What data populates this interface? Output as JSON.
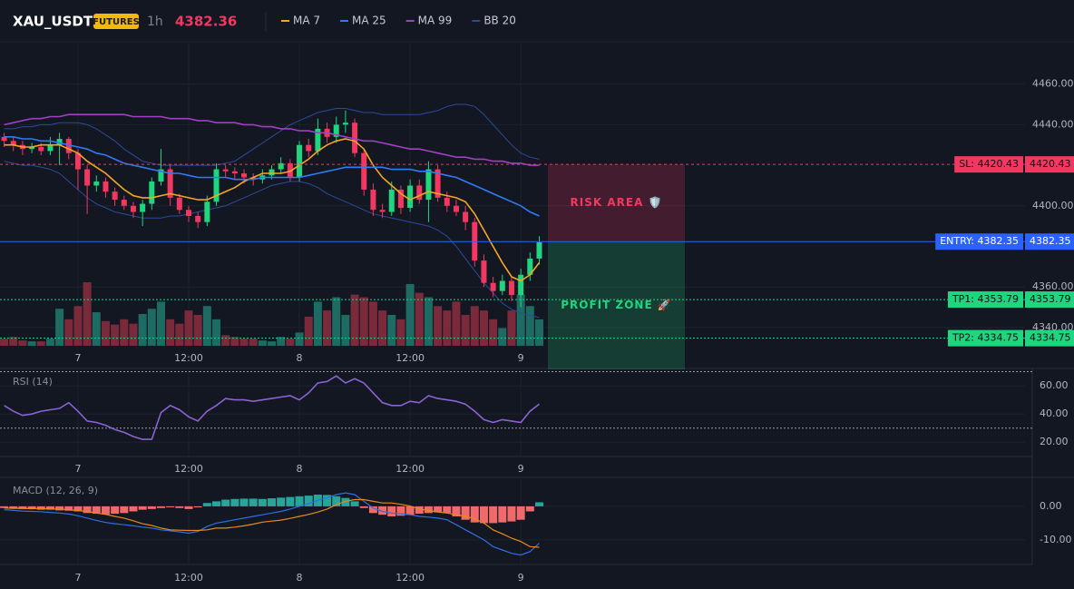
{
  "header": {
    "symbol": "XAU_USDT",
    "badge": "FUTURES",
    "interval": "1h",
    "price": "4382.36",
    "legend": [
      {
        "name": "MA 7",
        "color": "#f5a623"
      },
      {
        "name": "MA 25",
        "color": "#2f7bf5"
      },
      {
        "name": "MA 99",
        "color": "#a23fc4"
      },
      {
        "name": "BB 20",
        "color": "#2d4a9a"
      }
    ]
  },
  "chart_data": [
    {
      "type": "candlestick",
      "grid": true,
      "xlim": [
        -0.45,
        110.65
      ],
      "xticks": [
        {
          "value": 8,
          "label": "7"
        },
        {
          "value": 20,
          "label": "12:00"
        },
        {
          "value": 32,
          "label": "8"
        },
        {
          "value": 44,
          "label": "12:00"
        },
        {
          "value": 56,
          "label": "9"
        }
      ],
      "ylim": [
        4331,
        4480
      ],
      "yticks": [
        {
          "value": 4340,
          "label": "4340.00"
        },
        {
          "value": 4360,
          "label": "4360.00"
        },
        {
          "value": 4400,
          "label": "4400.00"
        },
        {
          "value": 4440,
          "label": "4440.00"
        },
        {
          "value": 4460,
          "label": "4460.00"
        }
      ],
      "up_color": "#1fd67f",
      "down_color": "#f23860",
      "volume_up_color": "#1d6b63",
      "volume_down_color": "#7a2a3a",
      "open": [
        4434,
        4432,
        4430,
        4428,
        4429,
        4427,
        4430,
        4433,
        4426,
        4418,
        4410,
        4412,
        4407,
        4403,
        4400,
        4397,
        4401,
        4412,
        4418,
        4404,
        4398,
        4395,
        4392,
        4402,
        4418,
        4417,
        4416,
        4414,
        4413,
        4415,
        4418,
        4421,
        4414,
        4430,
        4427,
        4438,
        4434,
        4440,
        4441,
        4426,
        4408,
        4398,
        4397,
        4408,
        4399,
        4410,
        4403,
        4418,
        4404,
        4400,
        4397,
        4392,
        4373,
        4362,
        4358,
        4363,
        4356,
        4366,
        4374
      ],
      "high": [
        4436,
        4434,
        4432,
        4431,
        4431,
        4434,
        4436,
        4434,
        4428,
        4420,
        4415,
        4414,
        4409,
        4405,
        4402,
        4403,
        4414,
        4428,
        4420,
        4406,
        4400,
        4397,
        4405,
        4421,
        4420,
        4419,
        4418,
        4416,
        4418,
        4420,
        4424,
        4423,
        4432,
        4433,
        4443,
        4441,
        4444,
        4447,
        4443,
        4428,
        4411,
        4401,
        4412,
        4410,
        4413,
        4413,
        4422,
        4420,
        4407,
        4403,
        4400,
        4394,
        4376,
        4365,
        4366,
        4365,
        4369,
        4377,
        4385
      ],
      "low": [
        4429,
        4427,
        4425,
        4426,
        4425,
        4425,
        4420,
        4423,
        4408,
        4396,
        4407,
        4404,
        4400,
        4398,
        4394,
        4390,
        4398,
        4410,
        4400,
        4396,
        4392,
        4389,
        4390,
        4400,
        4414,
        4413,
        4411,
        4410,
        4411,
        4413,
        4416,
        4412,
        4412,
        4424,
        4425,
        4431,
        4431,
        4436,
        4424,
        4405,
        4395,
        4394,
        4395,
        4396,
        4397,
        4401,
        4392,
        4402,
        4397,
        4395,
        4388,
        4370,
        4360,
        4355,
        4356,
        4353,
        4350,
        4363,
        4371
      ],
      "close": [
        4432,
        4430,
        4428,
        4429,
        4427,
        4430,
        4433,
        4426,
        4418,
        4410,
        4412,
        4407,
        4403,
        4400,
        4397,
        4401,
        4412,
        4418,
        4404,
        4398,
        4395,
        4392,
        4402,
        4418,
        4417,
        4416,
        4414,
        4413,
        4415,
        4418,
        4421,
        4414,
        4430,
        4427,
        4438,
        4434,
        4440,
        4441,
        4426,
        4408,
        4398,
        4397,
        4408,
        4399,
        4410,
        4403,
        4418,
        4404,
        4400,
        4397,
        4392,
        4373,
        4362,
        4358,
        4363,
        4356,
        4366,
        4374,
        4382
      ],
      "volume": [
        8,
        10,
        6,
        5,
        5,
        8,
        42,
        30,
        45,
        72,
        38,
        28,
        24,
        30,
        25,
        36,
        42,
        50,
        30,
        25,
        40,
        35,
        45,
        30,
        12,
        10,
        8,
        8,
        6,
        5,
        10,
        8,
        15,
        33,
        50,
        40,
        55,
        35,
        58,
        55,
        50,
        40,
        35,
        30,
        70,
        60,
        55,
        45,
        40,
        50,
        35,
        45,
        40,
        30,
        20,
        40,
        58,
        45,
        30
      ],
      "series": [
        {
          "name": "MA 7",
          "color": "#f5a623",
          "values": [
            4430,
            4430,
            4429,
            4429,
            4430,
            4430,
            4430,
            4428,
            4426,
            4422,
            4419,
            4416,
            4412,
            4408,
            4405,
            4404,
            4404,
            4405,
            4406,
            4405,
            4404,
            4403,
            4403,
            4405,
            4407,
            4409,
            4412,
            4414,
            4416,
            4416,
            4416,
            4417,
            4420,
            4423,
            4427,
            4430,
            4432,
            4433,
            4432,
            4428,
            4420,
            4414,
            4410,
            4406,
            4403,
            4405,
            4407,
            4406,
            4405,
            4404,
            4402,
            4396,
            4388,
            4380,
            4372,
            4365,
            4363,
            4366,
            4372
          ]
        },
        {
          "name": "MA 25",
          "color": "#2f7bf5",
          "values": [
            4434,
            4434,
            4433,
            4433,
            4432,
            4432,
            4431,
            4430,
            4429,
            4428,
            4426,
            4425,
            4423,
            4421,
            4420,
            4419,
            4418,
            4417,
            4416,
            4416,
            4415,
            4414,
            4414,
            4414,
            4414,
            4413,
            4413,
            4413,
            4414,
            4414,
            4414,
            4414,
            4414,
            4415,
            4416,
            4417,
            4418,
            4419,
            4419,
            4419,
            4419,
            4419,
            4418,
            4418,
            4418,
            4417,
            4417,
            4416,
            4415,
            4414,
            4412,
            4410,
            4408,
            4406,
            4404,
            4402,
            4400,
            4397,
            4395
          ]
        },
        {
          "name": "MA 99",
          "color": "#a23fc4",
          "values": [
            4440,
            4441,
            4442,
            4443,
            4443,
            4444,
            4444,
            4445,
            4445,
            4445,
            4445,
            4445,
            4445,
            4445,
            4444,
            4444,
            4444,
            4444,
            4443,
            4443,
            4443,
            4442,
            4442,
            4441,
            4441,
            4441,
            4440,
            4440,
            4439,
            4439,
            4438,
            4438,
            4437,
            4437,
            4436,
            4436,
            4435,
            4434,
            4433,
            4432,
            4432,
            4431,
            4430,
            4429,
            4428,
            4428,
            4427,
            4426,
            4425,
            4424,
            4424,
            4423,
            4423,
            4422,
            4422,
            4421,
            4421,
            4420,
            4420
          ]
        },
        {
          "name": "BB 20",
          "color": "#2d4a9a",
          "upper": [
            4438,
            4438,
            4439,
            4439,
            4440,
            4440,
            4441,
            4441,
            4441,
            4440,
            4438,
            4435,
            4432,
            4428,
            4425,
            4422,
            4421,
            4420,
            4420,
            4420,
            4420,
            4420,
            4420,
            4420,
            4421,
            4422,
            4425,
            4428,
            4431,
            4434,
            4437,
            4440,
            4442,
            4444,
            4446,
            4447,
            4448,
            4448,
            4447,
            4446,
            4446,
            4445,
            4445,
            4445,
            4445,
            4445,
            4446,
            4447,
            4449,
            4450,
            4450,
            4449,
            4445,
            4440,
            4435,
            4430,
            4426,
            4424,
            4423
          ],
          "lower": [
            4422,
            4421,
            4420,
            4420,
            4419,
            4418,
            4416,
            4412,
            4408,
            4404,
            4401,
            4399,
            4397,
            4396,
            4395,
            4394,
            4394,
            4394,
            4395,
            4395,
            4396,
            4397,
            4398,
            4399,
            4400,
            4402,
            4404,
            4406,
            4408,
            4410,
            4411,
            4412,
            4412,
            4411,
            4409,
            4406,
            4404,
            4402,
            4400,
            4398,
            4396,
            4395,
            4394,
            4393,
            4392,
            4391,
            4390,
            4388,
            4385,
            4380,
            4374,
            4368,
            4362,
            4357,
            4352,
            4349,
            4347,
            4346,
            4345
          ]
        }
      ],
      "levels": [
        {
          "label": "SL: 4420.43",
          "value": 4420.43,
          "color": "#f23860",
          "style": "dashed"
        },
        {
          "label": "ENTRY: 4382.35",
          "value": 4382.35,
          "color": "#2962ff",
          "style": "solid"
        },
        {
          "label": "TP1: 4353.79",
          "value": 4353.79,
          "color": "#1fd67f",
          "style": "dotted"
        },
        {
          "label": "TP2: 4334.75",
          "value": 4334.75,
          "color": "#1fd67f",
          "style": "dotted"
        }
      ],
      "zones": [
        {
          "label": "RISK AREA 🛡️",
          "color": "#f23860"
        },
        {
          "label": "PROFIT ZONE 🚀",
          "color": "#1fd67f"
        }
      ]
    },
    {
      "type": "line",
      "title": "RSI (14)",
      "grid": true,
      "color": "#8a63d2",
      "xlim": [
        -0.45,
        110.65
      ],
      "xticks": [
        {
          "value": 8,
          "label": "7"
        },
        {
          "value": 20,
          "label": "12:00"
        },
        {
          "value": 32,
          "label": "8"
        },
        {
          "value": 44,
          "label": "12:00"
        },
        {
          "value": 56,
          "label": "9"
        }
      ],
      "ylim": [
        10.5,
        71
      ],
      "yticks": [
        {
          "value": 20,
          "label": "20.00"
        },
        {
          "value": 40,
          "label": "40.00"
        },
        {
          "value": 60,
          "label": "60.00"
        }
      ],
      "levels": [
        70,
        30
      ],
      "values": [
        46,
        42,
        39,
        40,
        42,
        43,
        44,
        48,
        42,
        35,
        34,
        32,
        29,
        27,
        24,
        22,
        22,
        41,
        46,
        43,
        38,
        35,
        42,
        46,
        51,
        50,
        50,
        49,
        50,
        51,
        52,
        53,
        50,
        55,
        62,
        63,
        67,
        62,
        65,
        62,
        55,
        48,
        46,
        46,
        49,
        48,
        53,
        51,
        50,
        49,
        47,
        42,
        36,
        34,
        36,
        35,
        34,
        42,
        47
      ]
    },
    {
      "type": "macd",
      "title": "MACD (12, 26, 9)",
      "grid": true,
      "xlim": [
        -0.45,
        110.65
      ],
      "xticks": [
        {
          "value": 8,
          "label": "7"
        },
        {
          "value": 20,
          "label": "12:00"
        },
        {
          "value": 32,
          "label": "8"
        },
        {
          "value": 44,
          "label": "12:00"
        },
        {
          "value": 56,
          "label": "9"
        }
      ],
      "ylim": [
        -16.8,
        8.1
      ],
      "yticks": [
        {
          "value": -10,
          "label": "-10.00"
        },
        {
          "value": 0,
          "label": "0.00"
        }
      ],
      "up_color": "#26a69a",
      "down_color": "#f06a6a",
      "histogram": [
        -0.5,
        -0.6,
        -0.8,
        -0.8,
        -1,
        -1,
        -1.2,
        -1.3,
        -1.5,
        -2,
        -2.2,
        -2.4,
        -2.2,
        -2,
        -1.5,
        -1,
        -0.8,
        -0.5,
        -0.3,
        -0.5,
        -0.8,
        -0.3,
        1,
        1.5,
        2,
        2.2,
        2.3,
        2.3,
        2.2,
        2.4,
        2.6,
        2.8,
        3,
        3.2,
        3.5,
        3.4,
        3,
        2.5,
        1.5,
        -0.5,
        -2,
        -2.5,
        -3,
        -2.8,
        -2.6,
        -2.2,
        -2,
        -1.8,
        -2,
        -3,
        -4,
        -4.8,
        -5,
        -5,
        -4.8,
        -4.5,
        -4,
        -1.5,
        1.2
      ],
      "series": [
        {
          "color": "#2f6fe0",
          "values": [
            -1,
            -1.2,
            -1.4,
            -1.5,
            -1.6,
            -1.8,
            -2,
            -2.3,
            -2.8,
            -3.5,
            -4.2,
            -4.8,
            -5.2,
            -5.5,
            -5.8,
            -6.2,
            -6.5,
            -7,
            -7.3,
            -7.6,
            -8,
            -7.5,
            -6,
            -5,
            -4.5,
            -4,
            -3.5,
            -3,
            -2.5,
            -2,
            -1.5,
            -0.8,
            0,
            0.8,
            1.8,
            2.6,
            3.5,
            4,
            3.5,
            1.5,
            -0.5,
            -1.5,
            -2,
            -2.2,
            -2.5,
            -3,
            -3.2,
            -3.5,
            -4,
            -5.5,
            -7,
            -8.5,
            -10,
            -12,
            -13,
            -14,
            -14.5,
            -13.5,
            -11
          ]
        },
        {
          "color": "#e88a1a",
          "values": [
            -0.5,
            -0.6,
            -0.6,
            -0.7,
            -0.6,
            -0.8,
            -0.8,
            -1,
            -1.3,
            -1.5,
            -2,
            -2.4,
            -3,
            -3.5,
            -4.3,
            -5.2,
            -5.7,
            -6.5,
            -7,
            -7.1,
            -7.2,
            -7.2,
            -7,
            -6.5,
            -6.5,
            -6.2,
            -5.8,
            -5.3,
            -4.7,
            -4.4,
            -4.1,
            -3.6,
            -3,
            -2.4,
            -1.7,
            -0.8,
            0.5,
            1.5,
            2,
            2,
            1.5,
            1,
            1,
            0.6,
            0.1,
            -0.8,
            -1.2,
            -1.7,
            -2,
            -2.5,
            -3,
            -3.7,
            -5,
            -7,
            -8.2,
            -9.5,
            -10.5,
            -12,
            -12.2
          ]
        }
      ]
    }
  ]
}
